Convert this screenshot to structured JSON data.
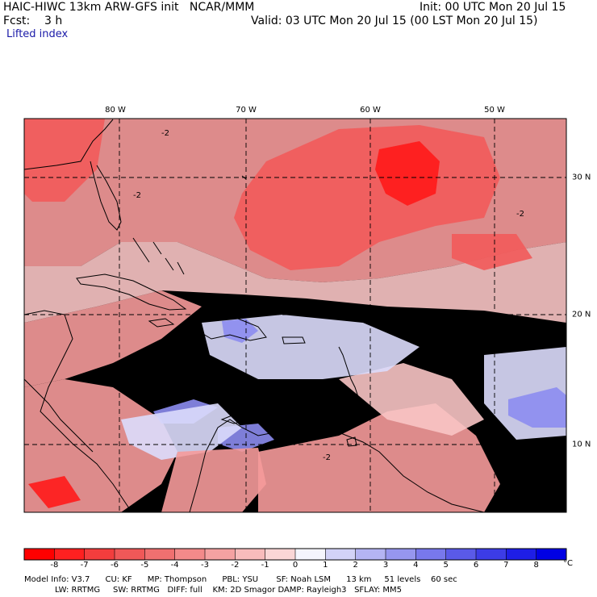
{
  "header": {
    "title": "HAIC-HIWC 13km ARW-GFS init   NCAR/MMM",
    "init": "Init: 00 UTC Mon 20 Jul 15",
    "fcst": "Fcst:    3 h",
    "valid": "Valid: 03 UTC Mon 20 Jul 15 (00 LST Mon 20 Jul 15)",
    "field": "Lifted index"
  },
  "map": {
    "lon_labels": [
      "80 W",
      "70 W",
      "60 W",
      "50 W"
    ],
    "lat_labels": [
      "30 N",
      "20 N",
      "10 N"
    ],
    "contour_label": "-2",
    "colors": {
      "deep_red": "#ff1a1a",
      "red": "#f25a5a",
      "pink": "#f59a9a",
      "light_pink": "#f8c4c4",
      "pale": "#fbe5e5",
      "light_blue": "#dcdcfc",
      "blue": "#8c8cef",
      "land_line": "#000000"
    }
  },
  "colorbar": {
    "ticks": [
      "-8",
      "-7",
      "-6",
      "-5",
      "-4",
      "-3",
      "-2",
      "-1",
      "0",
      "1",
      "2",
      "3",
      "4",
      "5",
      "6",
      "7",
      "8"
    ],
    "unit": "°C",
    "colors": [
      "#ff0000",
      "#ff2020",
      "#f33d3d",
      "#f05858",
      "#f07070",
      "#f38a8a",
      "#f5a2a2",
      "#f8bcbc",
      "#fad6d6",
      "#f5f5fd",
      "#d2d2f7",
      "#b4b4f3",
      "#9696ef",
      "#7878ec",
      "#5a5ae8",
      "#3c3ce6",
      "#1e1ee6",
      "#0000e4"
    ]
  },
  "footer": {
    "line1": "Model Info: V3.7      CU: KF      MP: Thompson      PBL: YSU       SF: Noah LSM      13 km     51 levels    60 sec",
    "line2": "LW: RRTMG     SW: RRTMG   DIFF: full    KM: 2D Smagor DAMP: Rayleigh3   SFLAY: MM5"
  }
}
